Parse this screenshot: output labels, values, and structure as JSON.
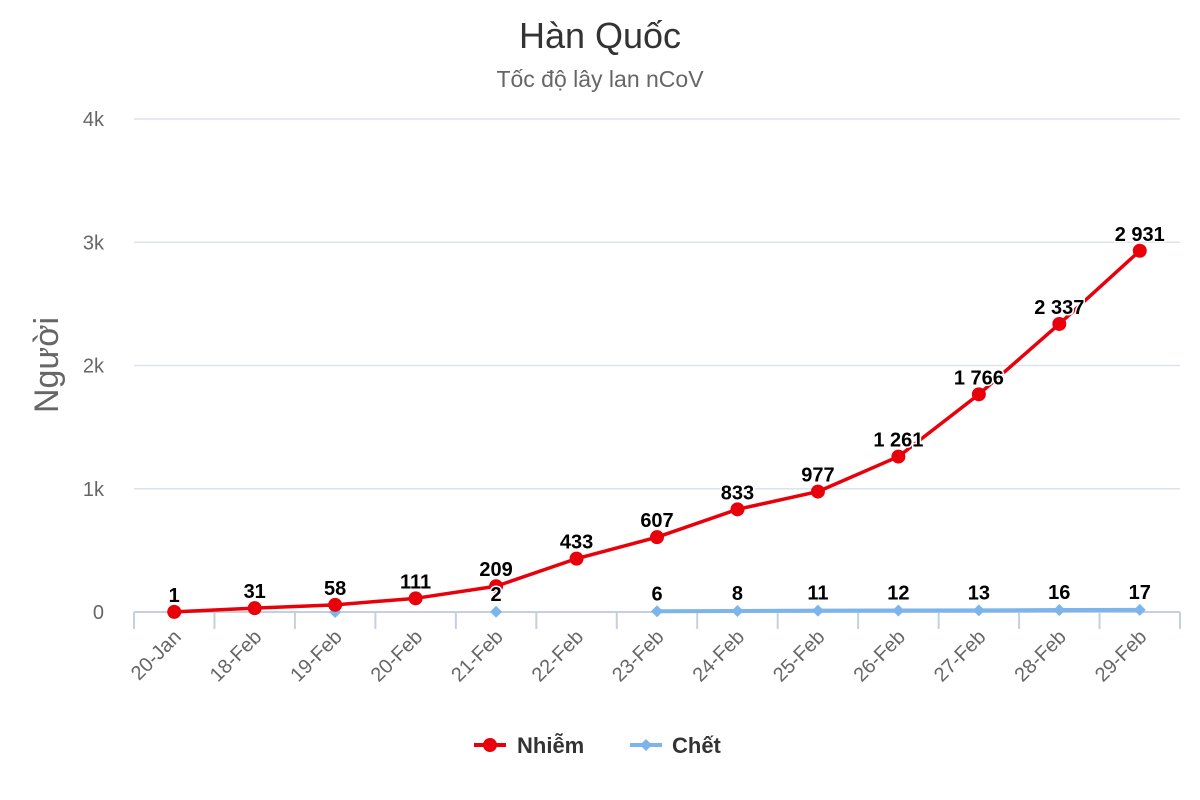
{
  "chart_data": {
    "type": "line",
    "title": "Hàn Quốc",
    "subtitle": "Tốc độ lây lan nCoV",
    "xlabel": "",
    "ylabel": "Người",
    "categories": [
      "20-Jan",
      "18-Feb",
      "19-Feb",
      "20-Feb",
      "21-Feb",
      "22-Feb",
      "23-Feb",
      "24-Feb",
      "25-Feb",
      "26-Feb",
      "27-Feb",
      "28-Feb",
      "29-Feb"
    ],
    "ylim": [
      0,
      4000
    ],
    "yticks": [
      {
        "value": 0,
        "label": "0"
      },
      {
        "value": 1000,
        "label": "1k"
      },
      {
        "value": 2000,
        "label": "2k"
      },
      {
        "value": 3000,
        "label": "3k"
      },
      {
        "value": 4000,
        "label": "4k"
      }
    ],
    "grid": true,
    "legend_position": "bottom",
    "series": [
      {
        "name": "Nhiễm",
        "color": "#e8000b",
        "marker": "circle",
        "values": [
          1,
          31,
          58,
          111,
          209,
          433,
          607,
          833,
          977,
          1261,
          1766,
          2337,
          2931
        ],
        "labels": [
          "1",
          "31",
          "58",
          "111",
          "209",
          "433",
          "607",
          "833",
          "977",
          "1 261",
          "1 766",
          "2 337",
          "2 931"
        ]
      },
      {
        "name": "Chết",
        "color": "#7cb5ec",
        "marker": "diamond",
        "values": [
          null,
          null,
          0,
          null,
          2,
          null,
          6,
          8,
          11,
          12,
          13,
          16,
          17
        ],
        "labels": [
          null,
          null,
          null,
          null,
          "2",
          null,
          "6",
          "8",
          "11",
          "12",
          "13",
          "16",
          "17"
        ]
      }
    ]
  }
}
